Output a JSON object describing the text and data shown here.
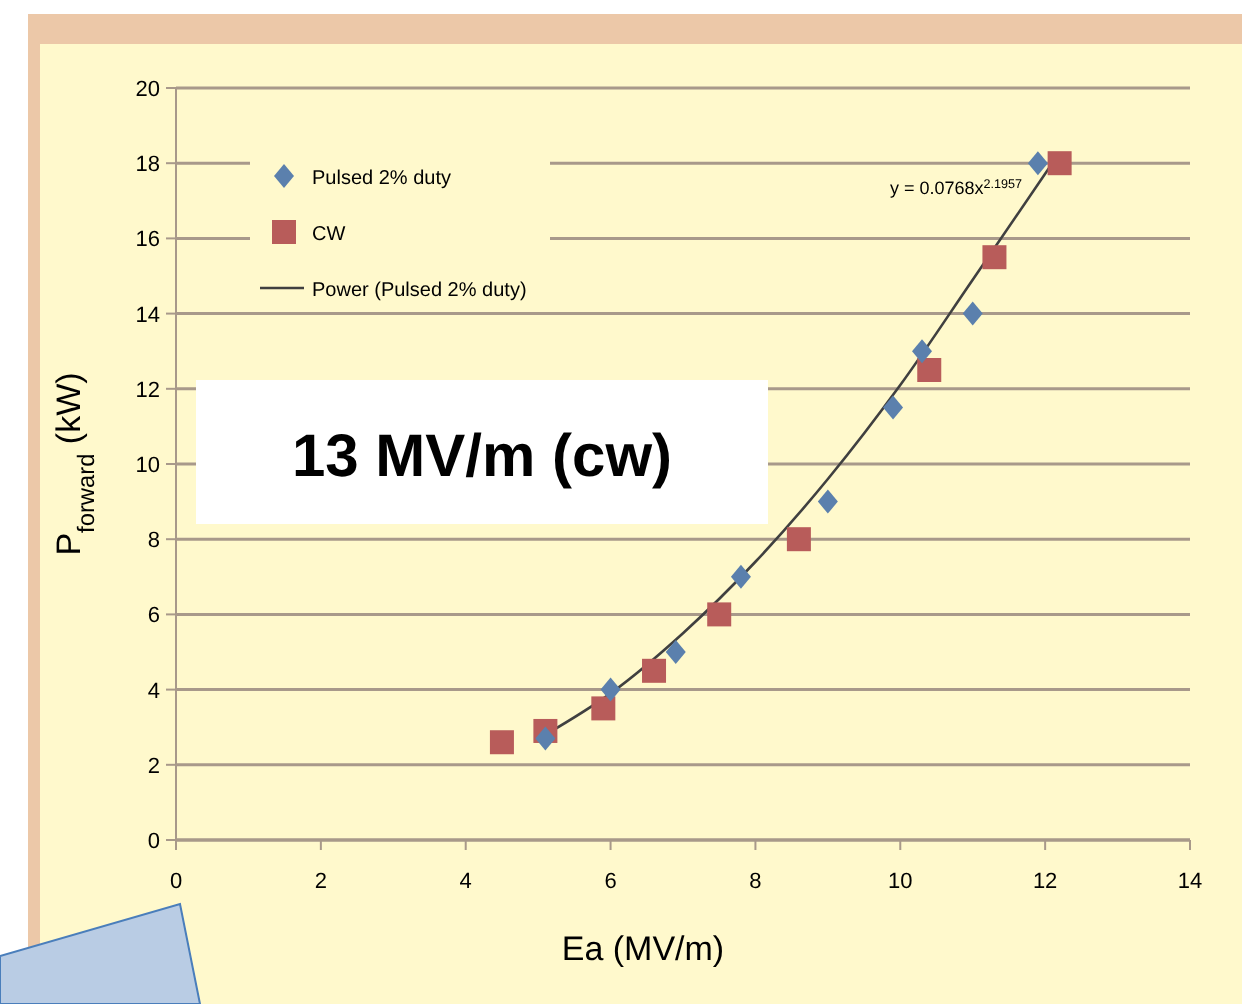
{
  "chart_data": {
    "type": "scatter",
    "xlabel": "Ea (MV/m)",
    "ylabel": "P$_{forward}$ (kW)",
    "xlim": [
      0,
      14
    ],
    "xticks": [
      0,
      2,
      4,
      6,
      8,
      10,
      12,
      14
    ],
    "ylim": [
      0,
      20
    ],
    "yticks": [
      0,
      2,
      4,
      6,
      8,
      10,
      12,
      14,
      16,
      18,
      20
    ],
    "grid": "y",
    "legend": "top left",
    "series": [
      {
        "name": "Pulsed 2% duty",
        "marker": "diamond",
        "color": "#5b80ad",
        "x": [
          5.1,
          6.0,
          6.9,
          7.8,
          9.0,
          9.9,
          10.3,
          11.0,
          11.9
        ],
        "values": [
          2.7,
          4.0,
          5.0,
          7.0,
          9.0,
          11.5,
          13.0,
          14.0,
          18.0
        ]
      },
      {
        "name": "CW",
        "marker": "square",
        "color": "#b85c5a",
        "x": [
          4.5,
          5.1,
          5.9,
          6.6,
          7.5,
          8.6,
          10.4,
          11.3,
          12.2
        ],
        "values": [
          2.6,
          2.9,
          3.5,
          4.5,
          6.0,
          8.0,
          12.5,
          15.5,
          18.0
        ]
      },
      {
        "name": "Power (Pulsed 2% duty)",
        "type": "line",
        "marker": "none",
        "line_style": "solid",
        "color": "#404040",
        "x": [
          5.1,
          6,
          7,
          8,
          9,
          10,
          11,
          12.1
        ],
        "values": [
          2.8,
          3.9,
          5.5,
          7.4,
          9.6,
          12.1,
          14.9,
          18.0
        ]
      }
    ],
    "annotations": [
      "13 MV/m (cw)",
      "y = 0.0768x$^{2.1957}$"
    ]
  }
}
